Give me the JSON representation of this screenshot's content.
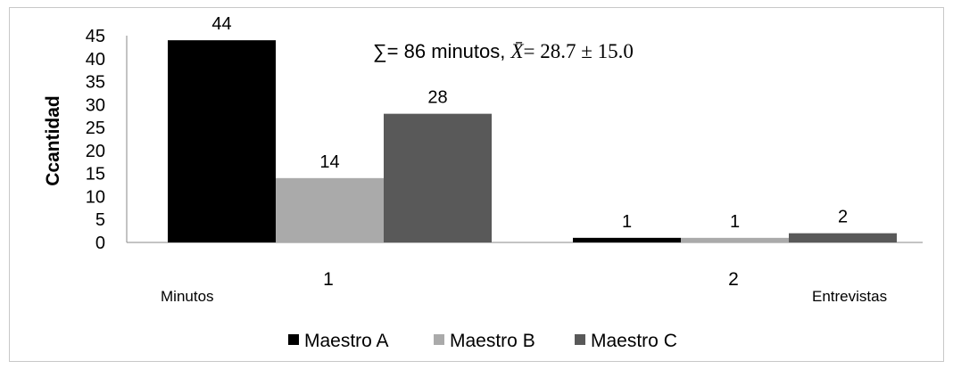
{
  "chart_data": {
    "type": "bar",
    "categories": [
      "1",
      "2"
    ],
    "category_sublabels": [
      "Minutos",
      "Entrevistas"
    ],
    "series": [
      {
        "name": "Maestro A",
        "color": "#000000",
        "values": [
          44,
          1
        ]
      },
      {
        "name": "Maestro B",
        "color": "#aaaaaa",
        "values": [
          14,
          1
        ]
      },
      {
        "name": "Maestro C",
        "color": "#595959",
        "values": [
          28,
          2
        ]
      }
    ],
    "ylabel": "Ccantidad",
    "ylim": [
      0,
      45
    ],
    "yticks": [
      "0",
      "5",
      "10",
      "15",
      "20",
      "25",
      "30",
      "35",
      "40",
      "45"
    ],
    "annotation": {
      "sum_text": "∑= 86 minutos, ",
      "mean_symbol": "X̄",
      "mean_text": "= 28.7 ± 15.0"
    },
    "legend_position": "bottom",
    "grid": false
  }
}
